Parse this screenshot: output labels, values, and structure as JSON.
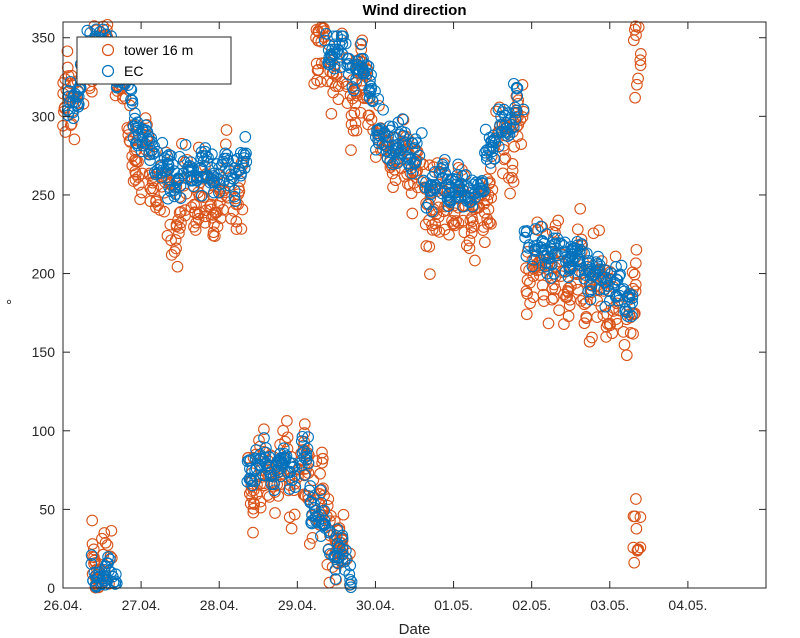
{
  "chart_data": {
    "type": "scatter",
    "title": "Wind direction",
    "xlabel": "Date",
    "ylabel": "°",
    "x_tick_labels": [
      "26.04.",
      "27.04.",
      "28.04.",
      "29.04.",
      "30.04.",
      "01.05.",
      "02.05.",
      "03.05.",
      "04.05."
    ],
    "xlim_days": [
      0,
      9
    ],
    "ylim": [
      0,
      360
    ],
    "y_ticks": [
      0,
      50,
      100,
      150,
      200,
      250,
      300,
      350
    ],
    "grid": false,
    "legend_position": "top-left",
    "colors": {
      "tower": "#D95319",
      "ec": "#0072BD"
    },
    "series": [
      {
        "name": "tower 16 m",
        "color": "#D95319",
        "segments": [
          {
            "day_start": 0.0,
            "day_end": 0.4,
            "dir_start": 300,
            "dir_end": 330,
            "spread": 25
          },
          {
            "day_start": 0.35,
            "day_end": 0.65,
            "dir_start": 15,
            "dir_end": 15,
            "spread": 20
          },
          {
            "day_start": 0.4,
            "day_end": 0.8,
            "dir_start": 350,
            "dir_end": 320,
            "spread": 20
          },
          {
            "day_start": 0.8,
            "day_end": 1.3,
            "dir_start": 290,
            "dir_end": 250,
            "spread": 22
          },
          {
            "day_start": 1.3,
            "day_end": 2.3,
            "dir_start": 245,
            "dir_end": 250,
            "spread": 28
          },
          {
            "day_start": 2.35,
            "day_end": 3.15,
            "dir_start": 70,
            "dir_end": 75,
            "spread": 25
          },
          {
            "day_start": 3.1,
            "day_end": 3.7,
            "dir_start": 70,
            "dir_end": 10,
            "spread": 25
          },
          {
            "day_start": 3.2,
            "day_end": 4.0,
            "dir_start": 345,
            "dir_end": 310,
            "spread": 25
          },
          {
            "day_start": 4.0,
            "day_end": 4.6,
            "dir_start": 280,
            "dir_end": 265,
            "spread": 25
          },
          {
            "day_start": 4.6,
            "day_end": 5.4,
            "dir_start": 250,
            "dir_end": 235,
            "spread": 28
          },
          {
            "day_start": 5.4,
            "day_end": 5.9,
            "dir_start": 260,
            "dir_end": 295,
            "spread": 28
          },
          {
            "day_start": 5.9,
            "day_end": 6.6,
            "dir_start": 205,
            "dir_end": 195,
            "spread": 25
          },
          {
            "day_start": 6.6,
            "day_end": 7.35,
            "dir_start": 195,
            "dir_end": 180,
            "spread": 30
          },
          {
            "day_start": 7.3,
            "day_end": 7.4,
            "dir_start": 330,
            "dir_end": 330,
            "spread": 30
          },
          {
            "day_start": 7.3,
            "day_end": 7.4,
            "dir_start": 25,
            "dir_end": 25,
            "spread": 25
          }
        ]
      },
      {
        "name": "EC",
        "color": "#0072BD",
        "segments": [
          {
            "day_start": 0.05,
            "day_end": 0.4,
            "dir_start": 300,
            "dir_end": 345,
            "spread": 14
          },
          {
            "day_start": 0.35,
            "day_end": 0.7,
            "dir_start": 10,
            "dir_end": 8,
            "spread": 10
          },
          {
            "day_start": 0.4,
            "day_end": 0.9,
            "dir_start": 352,
            "dir_end": 315,
            "spread": 12
          },
          {
            "day_start": 0.9,
            "day_end": 1.3,
            "dir_start": 295,
            "dir_end": 265,
            "spread": 12
          },
          {
            "day_start": 1.3,
            "day_end": 2.35,
            "dir_start": 260,
            "dir_end": 270,
            "spread": 14
          },
          {
            "day_start": 2.35,
            "day_end": 3.15,
            "dir_start": 75,
            "dir_end": 80,
            "spread": 12
          },
          {
            "day_start": 3.15,
            "day_end": 3.7,
            "dir_start": 55,
            "dir_end": 8,
            "spread": 14
          },
          {
            "day_start": 3.35,
            "day_end": 4.0,
            "dir_start": 350,
            "dir_end": 320,
            "spread": 12
          },
          {
            "day_start": 4.0,
            "day_end": 4.6,
            "dir_start": 290,
            "dir_end": 275,
            "spread": 14
          },
          {
            "day_start": 4.6,
            "day_end": 5.4,
            "dir_start": 260,
            "dir_end": 250,
            "spread": 14
          },
          {
            "day_start": 5.4,
            "day_end": 5.9,
            "dir_start": 275,
            "dir_end": 310,
            "spread": 14
          },
          {
            "day_start": 5.9,
            "day_end": 6.6,
            "dir_start": 220,
            "dir_end": 210,
            "spread": 12
          },
          {
            "day_start": 6.6,
            "day_end": 7.3,
            "dir_start": 205,
            "dir_end": 185,
            "spread": 14
          }
        ]
      }
    ]
  }
}
